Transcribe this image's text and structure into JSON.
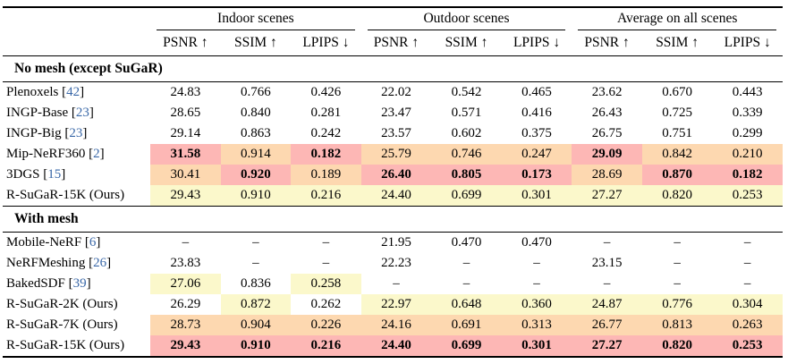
{
  "colors": {
    "best": "#fdb7b5",
    "second": "#fdd8b0",
    "third": "#fbf8cb",
    "citation": "#3a68a8"
  },
  "table": {
    "groups": [
      "Indoor scenes",
      "Outdoor scenes",
      "Average on all scenes"
    ],
    "metrics": [
      "PSNR ↑",
      "SSIM ↑",
      "LPIPS ↓"
    ],
    "sections": [
      {
        "title": "No mesh (except SuGaR)",
        "rows": [
          {
            "method": "Plenoxels",
            "cite": "42",
            "cells": [
              {
                "v": "24.83"
              },
              {
                "v": "0.766"
              },
              {
                "v": "0.426"
              },
              {
                "v": "22.02"
              },
              {
                "v": "0.542"
              },
              {
                "v": "0.465"
              },
              {
                "v": "23.62"
              },
              {
                "v": "0.670"
              },
              {
                "v": "0.443"
              }
            ]
          },
          {
            "method": "INGP-Base",
            "cite": "23",
            "cells": [
              {
                "v": "28.65"
              },
              {
                "v": "0.840"
              },
              {
                "v": "0.281"
              },
              {
                "v": "23.47"
              },
              {
                "v": "0.571"
              },
              {
                "v": "0.416"
              },
              {
                "v": "26.43"
              },
              {
                "v": "0.725"
              },
              {
                "v": "0.339"
              }
            ]
          },
          {
            "method": "INGP-Big",
            "cite": "23",
            "cells": [
              {
                "v": "29.14"
              },
              {
                "v": "0.863"
              },
              {
                "v": "0.242"
              },
              {
                "v": "23.57"
              },
              {
                "v": "0.602"
              },
              {
                "v": "0.375"
              },
              {
                "v": "26.75"
              },
              {
                "v": "0.751"
              },
              {
                "v": "0.299"
              }
            ]
          },
          {
            "method": "Mip-NeRF360",
            "cite": "2",
            "cells": [
              {
                "v": "31.58",
                "hl": "best",
                "b": true
              },
              {
                "v": "0.914",
                "hl": "second"
              },
              {
                "v": "0.182",
                "hl": "best",
                "b": true
              },
              {
                "v": "25.79",
                "hl": "second"
              },
              {
                "v": "0.746",
                "hl": "second"
              },
              {
                "v": "0.247",
                "hl": "second"
              },
              {
                "v": "29.09",
                "hl": "best",
                "b": true
              },
              {
                "v": "0.842",
                "hl": "second"
              },
              {
                "v": "0.210",
                "hl": "second"
              }
            ]
          },
          {
            "method": "3DGS",
            "cite": "15",
            "cells": [
              {
                "v": "30.41",
                "hl": "second"
              },
              {
                "v": "0.920",
                "hl": "best",
                "b": true
              },
              {
                "v": "0.189",
                "hl": "second"
              },
              {
                "v": "26.40",
                "hl": "best",
                "b": true
              },
              {
                "v": "0.805",
                "hl": "best",
                "b": true
              },
              {
                "v": "0.173",
                "hl": "best",
                "b": true
              },
              {
                "v": "28.69",
                "hl": "second"
              },
              {
                "v": "0.870",
                "hl": "best",
                "b": true
              },
              {
                "v": "0.182",
                "hl": "best",
                "b": true
              }
            ]
          },
          {
            "method": "R-SuGaR-15K (Ours)",
            "cite": null,
            "cells": [
              {
                "v": "29.43",
                "hl": "third"
              },
              {
                "v": "0.910",
                "hl": "third"
              },
              {
                "v": "0.216",
                "hl": "third"
              },
              {
                "v": "24.40",
                "hl": "third"
              },
              {
                "v": "0.699",
                "hl": "third"
              },
              {
                "v": "0.301",
                "hl": "third"
              },
              {
                "v": "27.27",
                "hl": "third"
              },
              {
                "v": "0.820",
                "hl": "third"
              },
              {
                "v": "0.253",
                "hl": "third"
              }
            ]
          }
        ]
      },
      {
        "title": "With mesh",
        "rows": [
          {
            "method": "Mobile-NeRF",
            "cite": "6",
            "cells": [
              {
                "v": "–"
              },
              {
                "v": "–"
              },
              {
                "v": "–"
              },
              {
                "v": "21.95"
              },
              {
                "v": "0.470"
              },
              {
                "v": "0.470"
              },
              {
                "v": "–"
              },
              {
                "v": "–"
              },
              {
                "v": "–"
              }
            ]
          },
          {
            "method": "NeRFMeshing",
            "cite": "26",
            "cells": [
              {
                "v": "23.83"
              },
              {
                "v": "–"
              },
              {
                "v": "–"
              },
              {
                "v": "22.23"
              },
              {
                "v": "–"
              },
              {
                "v": "–"
              },
              {
                "v": "23.15"
              },
              {
                "v": "–"
              },
              {
                "v": "–"
              }
            ]
          },
          {
            "method": "BakedSDF",
            "cite": "39",
            "cells": [
              {
                "v": "27.06",
                "hl": "third"
              },
              {
                "v": "0.836"
              },
              {
                "v": "0.258",
                "hl": "third"
              },
              {
                "v": "–"
              },
              {
                "v": "–"
              },
              {
                "v": "–"
              },
              {
                "v": "–"
              },
              {
                "v": "–"
              },
              {
                "v": "–"
              }
            ]
          },
          {
            "method": "R-SuGaR-2K (Ours)",
            "cite": null,
            "cells": [
              {
                "v": "26.29"
              },
              {
                "v": "0.872",
                "hl": "third"
              },
              {
                "v": "0.262"
              },
              {
                "v": "22.97",
                "hl": "third"
              },
              {
                "v": "0.648",
                "hl": "third"
              },
              {
                "v": "0.360",
                "hl": "third"
              },
              {
                "v": "24.87",
                "hl": "third"
              },
              {
                "v": "0.776",
                "hl": "third"
              },
              {
                "v": "0.304",
                "hl": "third"
              }
            ]
          },
          {
            "method": "R-SuGaR-7K (Ours)",
            "cite": null,
            "cells": [
              {
                "v": "28.73",
                "hl": "second"
              },
              {
                "v": "0.904",
                "hl": "second"
              },
              {
                "v": "0.226",
                "hl": "second"
              },
              {
                "v": "24.16",
                "hl": "second"
              },
              {
                "v": "0.691",
                "hl": "second"
              },
              {
                "v": "0.313",
                "hl": "second"
              },
              {
                "v": "26.77",
                "hl": "second"
              },
              {
                "v": "0.813",
                "hl": "second"
              },
              {
                "v": "0.263",
                "hl": "second"
              }
            ]
          },
          {
            "method": "R-SuGaR-15K (Ours)",
            "cite": null,
            "cells": [
              {
                "v": "29.43",
                "hl": "best",
                "b": true
              },
              {
                "v": "0.910",
                "hl": "best",
                "b": true
              },
              {
                "v": "0.216",
                "hl": "best",
                "b": true
              },
              {
                "v": "24.40",
                "hl": "best",
                "b": true
              },
              {
                "v": "0.699",
                "hl": "best",
                "b": true
              },
              {
                "v": "0.301",
                "hl": "best",
                "b": true
              },
              {
                "v": "27.27",
                "hl": "best",
                "b": true
              },
              {
                "v": "0.820",
                "hl": "best",
                "b": true
              },
              {
                "v": "0.253",
                "hl": "best",
                "b": true
              }
            ]
          }
        ]
      }
    ]
  }
}
